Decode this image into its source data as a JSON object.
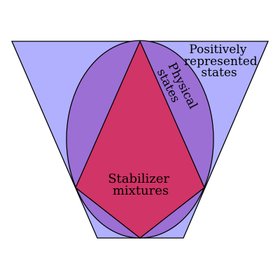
{
  "diagram": {
    "regions": {
      "positively_represented": {
        "label_lines": [
          "Positively",
          "represented",
          "states"
        ],
        "fill": "#b0b0ff"
      },
      "physical": {
        "label_lines": [
          "Physical",
          "states"
        ],
        "fill": "#9b6fd4"
      },
      "stabilizer": {
        "label_lines": [
          "Stabilizer",
          "mixtures"
        ],
        "fill": "#d13466"
      }
    },
    "stroke": "#000000"
  }
}
